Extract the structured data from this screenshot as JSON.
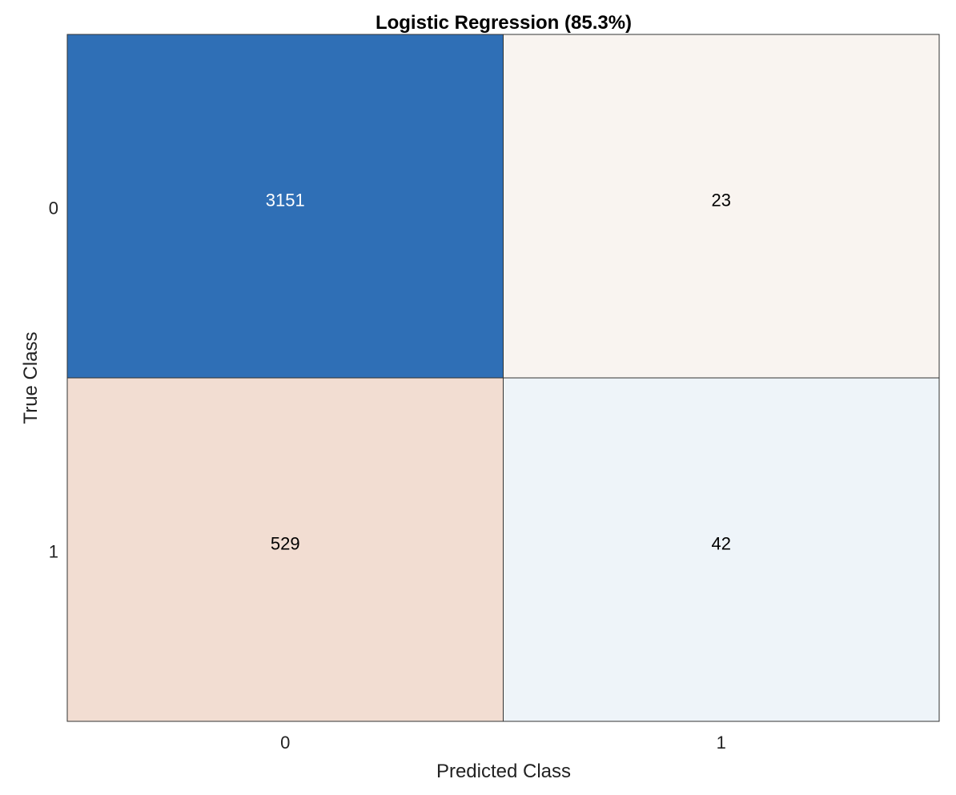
{
  "chart_data": {
    "type": "heatmap",
    "title": "Logistic Regression (85.3%)",
    "xlabel": "Predicted Class",
    "ylabel": "True Class",
    "x_categories": [
      "0",
      "1"
    ],
    "y_categories": [
      "0",
      "1"
    ],
    "values": [
      [
        3151,
        23
      ],
      [
        529,
        42
      ]
    ],
    "cell_colors": [
      [
        "#2f6fb6",
        "#f9f4f0"
      ],
      [
        "#f2ddd2",
        "#eef4f9"
      ]
    ],
    "cell_text_colors": [
      [
        "#ffffff",
        "#000000"
      ],
      [
        "#000000",
        "#000000"
      ]
    ],
    "grid": false,
    "legend": "none"
  }
}
